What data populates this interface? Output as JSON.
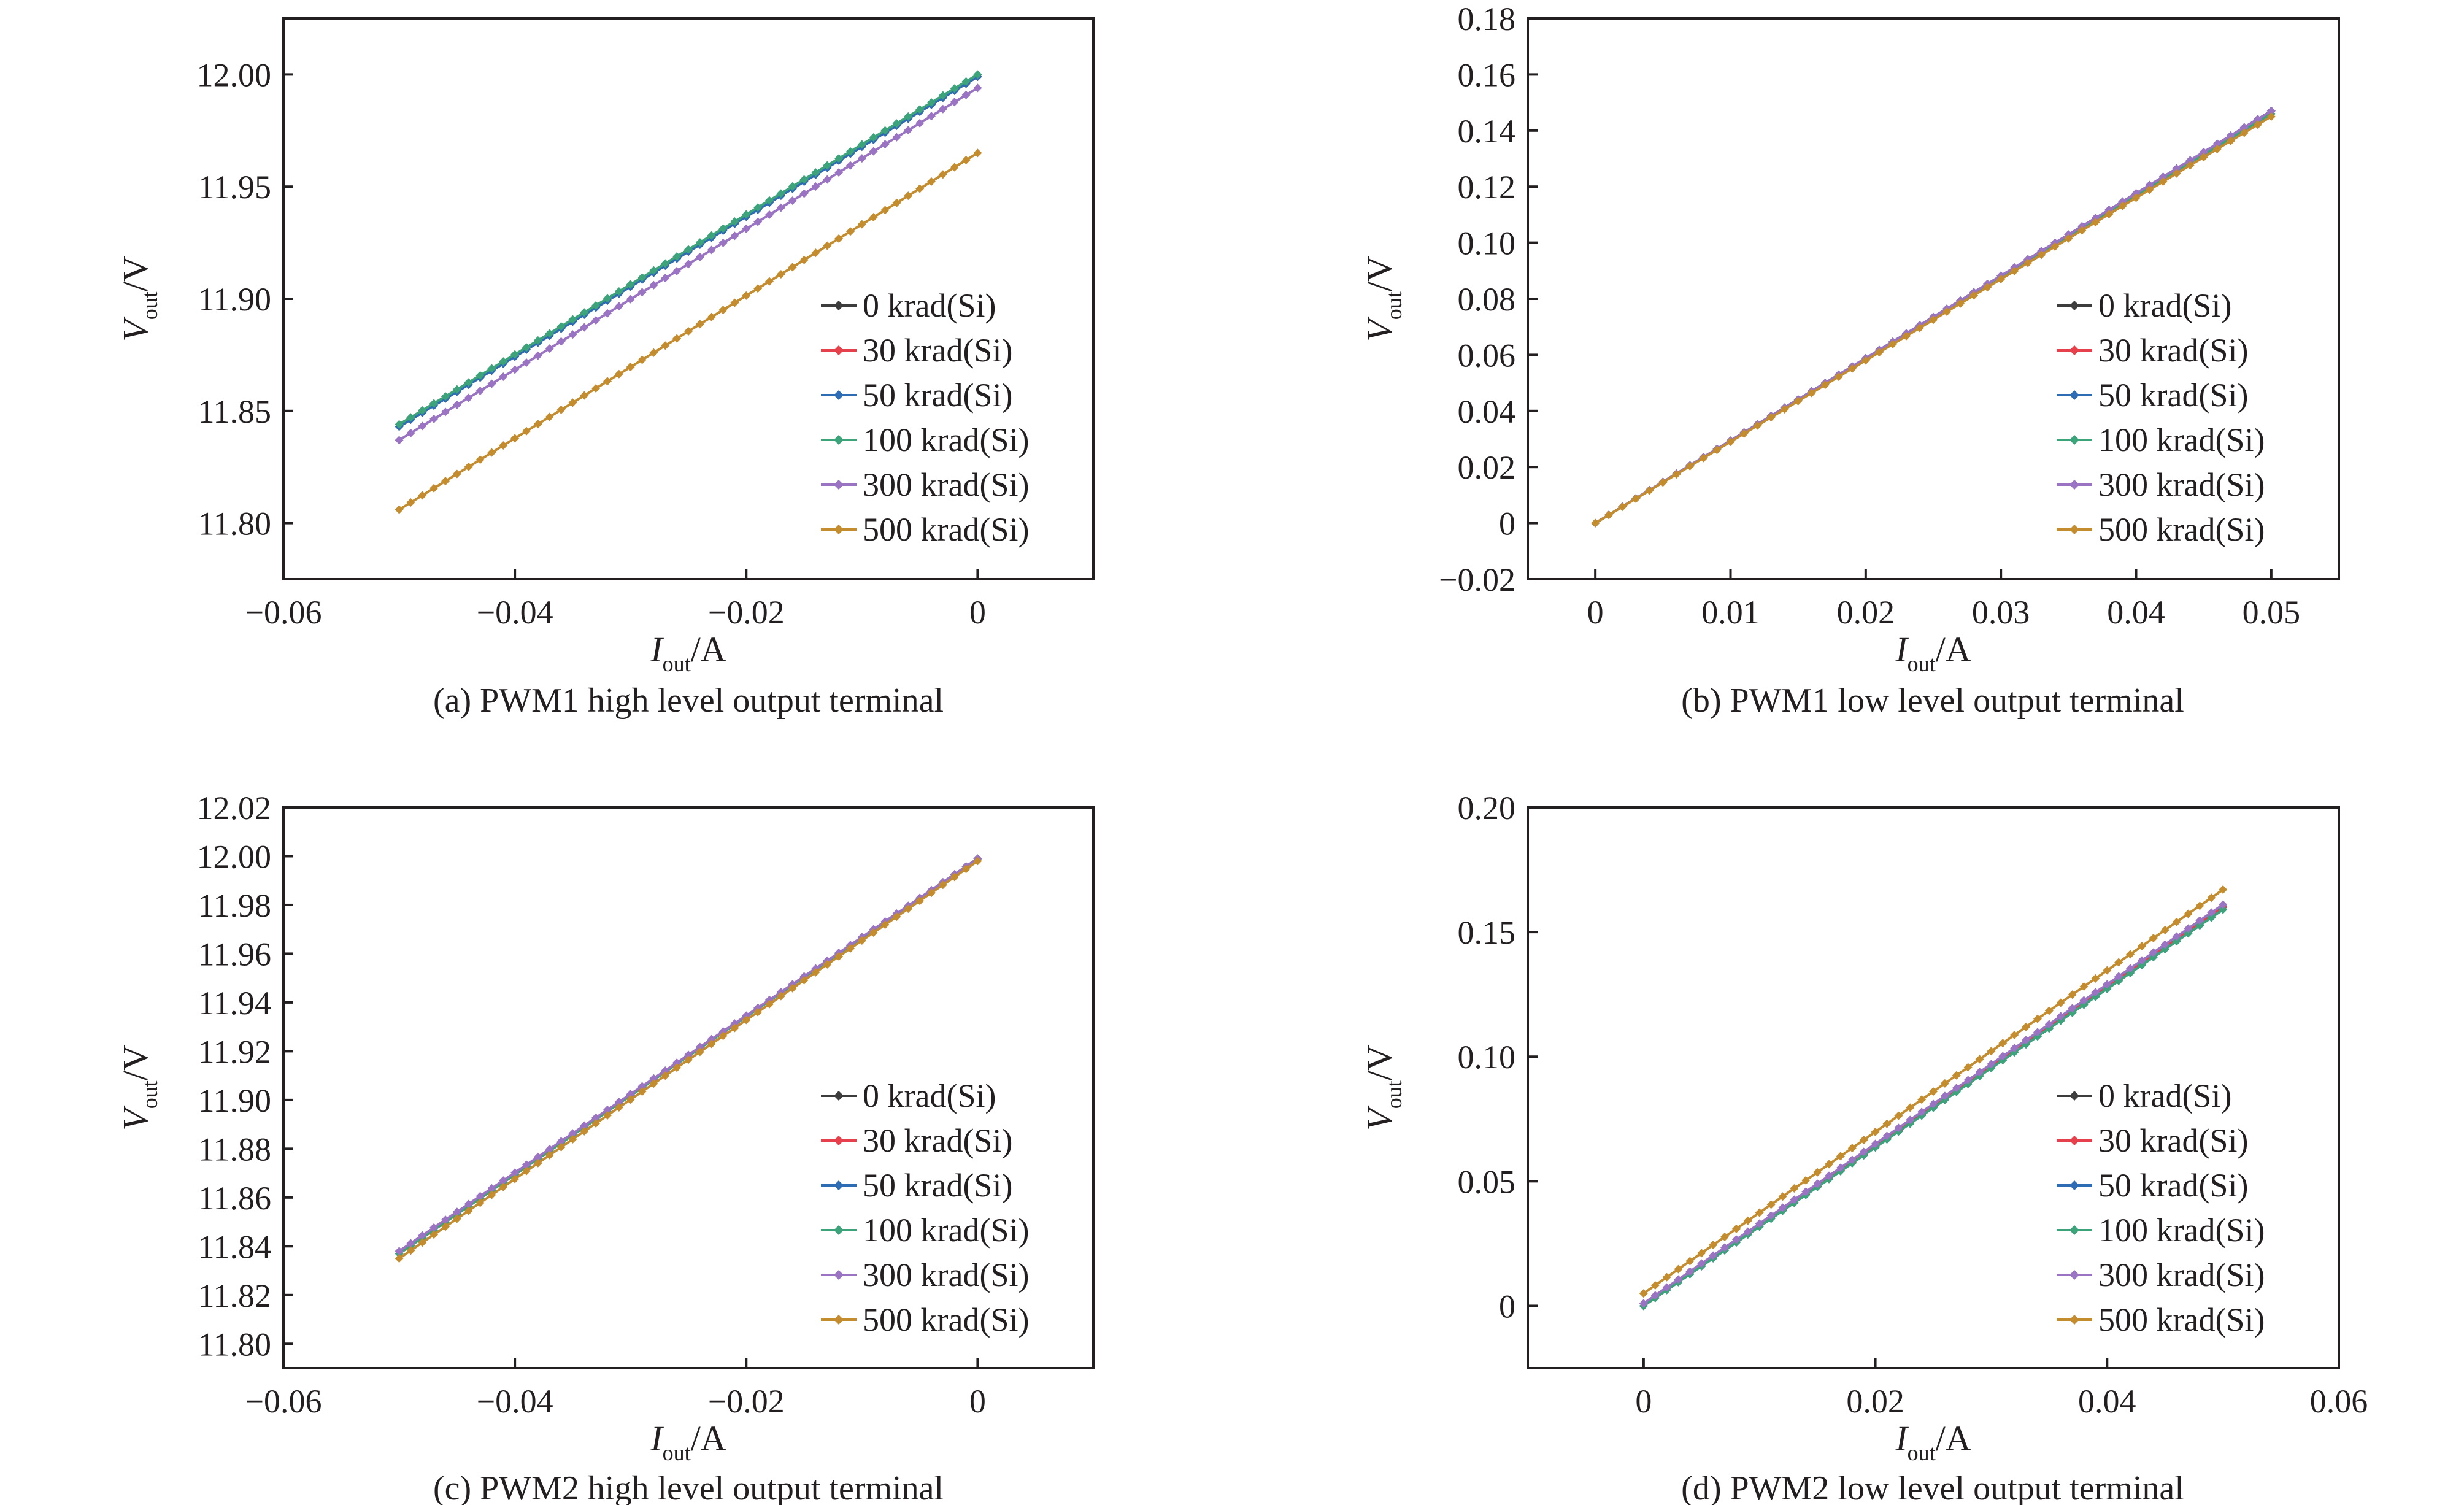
{
  "colors": {
    "0 krad(Si)": "#3d3d3d",
    "30 krad(Si)": "#e5404b",
    "50 krad(Si)": "#2e6db4",
    "100 krad(Si)": "#3da37a",
    "300 krad(Si)": "#9a73c2",
    "500 krad(Si)": "#c38c2f"
  },
  "chart_data": [
    {
      "id": "a",
      "type": "line",
      "caption": "(a) PWM1 high level output terminal",
      "xlabel": {
        "main": "I",
        "sub": "out",
        "unit": "/A"
      },
      "ylabel": {
        "main": "V",
        "sub": "out",
        "unit": "/V"
      },
      "xlim": [
        -0.06,
        0.01
      ],
      "ylim": [
        11.775,
        12.025
      ],
      "xticks": [
        -0.06,
        -0.04,
        -0.02,
        0
      ],
      "xtick_labels": [
        "−0.06",
        "−0.04",
        "−0.02",
        "0"
      ],
      "yticks": [
        11.8,
        11.85,
        11.9,
        11.95,
        12.0
      ],
      "ytick_labels": [
        "11.80",
        "11.85",
        "11.90",
        "11.95",
        "12.00"
      ],
      "legend": "right",
      "x_range": [
        -0.05,
        0
      ],
      "n_points": 51,
      "series": [
        {
          "name": "0 krad(Si)",
          "y_start": 11.843,
          "y_end": 11.999
        },
        {
          "name": "30 krad(Si)",
          "y_start": 11.844,
          "y_end": 11.999
        },
        {
          "name": "50 krad(Si)",
          "y_start": 11.843,
          "y_end": 11.999
        },
        {
          "name": "100 krad(Si)",
          "y_start": 11.844,
          "y_end": 12.0
        },
        {
          "name": "300 krad(Si)",
          "y_start": 11.837,
          "y_end": 11.994
        },
        {
          "name": "500 krad(Si)",
          "y_start": 11.806,
          "y_end": 11.965
        }
      ]
    },
    {
      "id": "b",
      "type": "line",
      "caption": "(b) PWM1 low level output terminal",
      "xlabel": {
        "main": "I",
        "sub": "out",
        "unit": "/A"
      },
      "ylabel": {
        "main": "V",
        "sub": "out",
        "unit": "/V"
      },
      "xlim": [
        -0.005,
        0.055
      ],
      "ylim": [
        -0.02,
        0.18
      ],
      "xticks": [
        0,
        0.01,
        0.02,
        0.03,
        0.04,
        0.05
      ],
      "xtick_labels": [
        "0",
        "0.01",
        "0.02",
        "0.03",
        "0.04",
        "0.05"
      ],
      "yticks": [
        -0.02,
        0,
        0.02,
        0.04,
        0.06,
        0.08,
        0.1,
        0.12,
        0.14,
        0.16,
        0.18
      ],
      "ytick_labels": [
        "−0.02",
        "0",
        "0.02",
        "0.04",
        "0.06",
        "0.08",
        "0.10",
        "0.12",
        "0.14",
        "0.16",
        "0.18"
      ],
      "legend": "right",
      "x_range": [
        0,
        0.05
      ],
      "n_points": 51,
      "series": [
        {
          "name": "0 krad(Si)",
          "y_start": 0.0,
          "y_end": 0.147
        },
        {
          "name": "30 krad(Si)",
          "y_start": 0.0,
          "y_end": 0.146
        },
        {
          "name": "50 krad(Si)",
          "y_start": 0.0,
          "y_end": 0.147
        },
        {
          "name": "100 krad(Si)",
          "y_start": 0.0,
          "y_end": 0.146
        },
        {
          "name": "300 krad(Si)",
          "y_start": 0.0,
          "y_end": 0.147
        },
        {
          "name": "500 krad(Si)",
          "y_start": 0.0,
          "y_end": 0.145
        }
      ]
    },
    {
      "id": "c",
      "type": "line",
      "caption": "(c) PWM2 high level output terminal",
      "xlabel": {
        "main": "I",
        "sub": "out",
        "unit": "/A"
      },
      "ylabel": {
        "main": "V",
        "sub": "out",
        "unit": "/V"
      },
      "xlim": [
        -0.06,
        0.01
      ],
      "ylim": [
        11.79,
        12.02
      ],
      "xticks": [
        -0.06,
        -0.04,
        -0.02,
        0
      ],
      "xtick_labels": [
        "−0.06",
        "−0.04",
        "−0.02",
        "0"
      ],
      "yticks": [
        11.8,
        11.82,
        11.84,
        11.86,
        11.88,
        11.9,
        11.92,
        11.94,
        11.96,
        11.98,
        12.0,
        12.02
      ],
      "ytick_labels": [
        "11.80",
        "11.82",
        "11.84",
        "11.86",
        "11.88",
        "11.90",
        "11.92",
        "11.94",
        "11.96",
        "11.98",
        "12.00",
        "12.02"
      ],
      "legend": "right",
      "x_range": [
        -0.05,
        0
      ],
      "n_points": 51,
      "series": [
        {
          "name": "0 krad(Si)",
          "y_start": 11.837,
          "y_end": 11.999
        },
        {
          "name": "30 krad(Si)",
          "y_start": 11.837,
          "y_end": 11.999
        },
        {
          "name": "50 krad(Si)",
          "y_start": 11.837,
          "y_end": 11.999
        },
        {
          "name": "100 krad(Si)",
          "y_start": 11.837,
          "y_end": 11.999
        },
        {
          "name": "300 krad(Si)",
          "y_start": 11.838,
          "y_end": 11.999
        },
        {
          "name": "500 krad(Si)",
          "y_start": 11.835,
          "y_end": 11.998
        }
      ]
    },
    {
      "id": "d",
      "type": "line",
      "caption": "(d) PWM2 low level output terminal",
      "xlabel": {
        "main": "I",
        "sub": "out",
        "unit": "/A"
      },
      "ylabel": {
        "main": "V",
        "sub": "out",
        "unit": "/V"
      },
      "xlim": [
        -0.01,
        0.06
      ],
      "ylim": [
        -0.025,
        0.2
      ],
      "xticks": [
        0,
        0.02,
        0.04,
        0.06
      ],
      "xtick_labels": [
        "0",
        "0.02",
        "0.04",
        "0.06"
      ],
      "yticks": [
        0,
        0.05,
        0.1,
        0.15,
        0.2
      ],
      "ytick_labels": [
        "0",
        "0.05",
        "0.10",
        "0.15",
        "0.20"
      ],
      "legend": "right",
      "x_range": [
        0,
        0.05
      ],
      "n_points": 51,
      "series": [
        {
          "name": "0 krad(Si)",
          "y_start": 0.0,
          "y_end": 0.16
        },
        {
          "name": "30 krad(Si)",
          "y_start": 0.0,
          "y_end": 0.16
        },
        {
          "name": "50 krad(Si)",
          "y_start": 0.0,
          "y_end": 0.159
        },
        {
          "name": "100 krad(Si)",
          "y_start": 0.0,
          "y_end": 0.159
        },
        {
          "name": "300 krad(Si)",
          "y_start": 0.001,
          "y_end": 0.161
        },
        {
          "name": "500 krad(Si)",
          "y_start": 0.005,
          "y_end": 0.167
        }
      ]
    }
  ]
}
